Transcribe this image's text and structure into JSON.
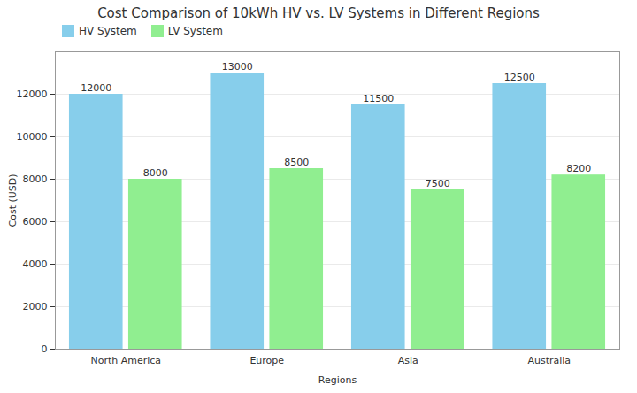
{
  "chart_data": {
    "type": "bar",
    "title": "Cost Comparison of 10kWh HV vs. LV Systems in Different Regions",
    "xlabel": "Regions",
    "ylabel": "Cost (USD)",
    "categories": [
      "North America",
      "Europe",
      "Asia",
      "Australia"
    ],
    "series": [
      {
        "name": "HV System",
        "color": "#87CEEB",
        "values": [
          12000,
          13000,
          11500,
          12500
        ]
      },
      {
        "name": "LV System",
        "color": "#90EE90",
        "values": [
          8000,
          8500,
          7500,
          8200
        ]
      }
    ],
    "ylim": [
      0,
      14000
    ],
    "yticks": [
      0,
      2000,
      4000,
      6000,
      8000,
      10000,
      12000
    ],
    "grid": true,
    "legend": "upper left",
    "data_labels": true
  }
}
